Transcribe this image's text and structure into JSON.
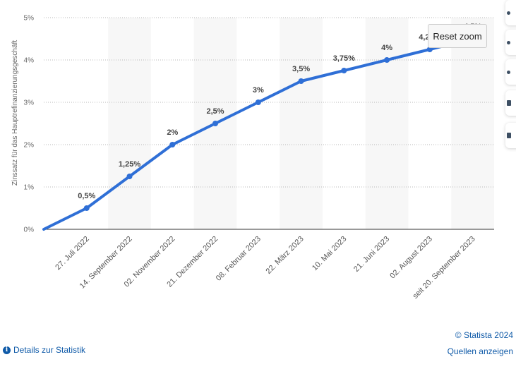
{
  "chart_data": {
    "type": "line",
    "title": "",
    "ylabel": "Zinssatz für das Hauptrefinanzierungsgeschäft",
    "xlabel": "",
    "categories": [
      "27. Juli 2022",
      "14. September 2022",
      "02. November 2022",
      "21. Dezember 2022",
      "08. Februar 2023",
      "22. März 2023",
      "10. Mai 2023",
      "21. Juni 2023",
      "02. August 2023",
      "seit 20. September 2023"
    ],
    "values": [
      0.5,
      1.25,
      2,
      2.5,
      3,
      3.5,
      3.75,
      4,
      4.25,
      4.5
    ],
    "data_labels": [
      "0,5%",
      "1,25%",
      "2%",
      "2,5%",
      "3%",
      "3,5%",
      "3,75%",
      "4%",
      "4,25%",
      "4,5%"
    ],
    "start_value": 0,
    "ylim": [
      0,
      5
    ],
    "yticks": [
      0,
      1,
      2,
      3,
      4,
      5
    ],
    "ytick_labels": [
      "0%",
      "1%",
      "2%",
      "3%",
      "4%",
      "5%"
    ],
    "grid": true,
    "line_color": "#2f6fd6",
    "band_color": "#f7f7f7"
  },
  "reset_zoom_label": "Reset zoom",
  "footer": {
    "details_label": "Details zur Statistik",
    "copyright": "© Statista 2024",
    "sources_label": "Quellen anzeigen"
  }
}
